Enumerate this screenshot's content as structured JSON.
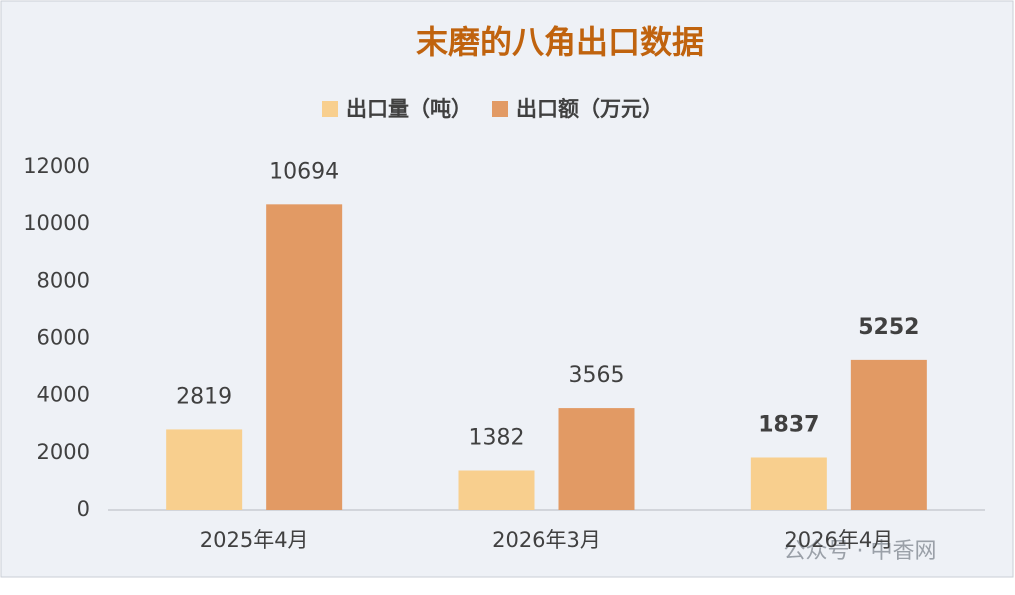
{
  "chart_data": {
    "type": "bar",
    "title": "末磨的八角出口数据",
    "categories": [
      "2025年4月",
      "2026年3月",
      "2026年4月"
    ],
    "series": [
      {
        "name": "出口量（吨）",
        "color": "#f8cf8e",
        "values": [
          2819,
          1382,
          1837
        ]
      },
      {
        "name": "出口额（万元）",
        "color": "#e29a64",
        "values": [
          10694,
          3565,
          5252
        ]
      }
    ],
    "ylim": [
      0,
      12000
    ],
    "yticks": [
      0,
      2000,
      4000,
      6000,
      8000,
      10000,
      12000
    ],
    "grid": false,
    "legend": "top",
    "watermark": "公众号 · 中香网"
  }
}
